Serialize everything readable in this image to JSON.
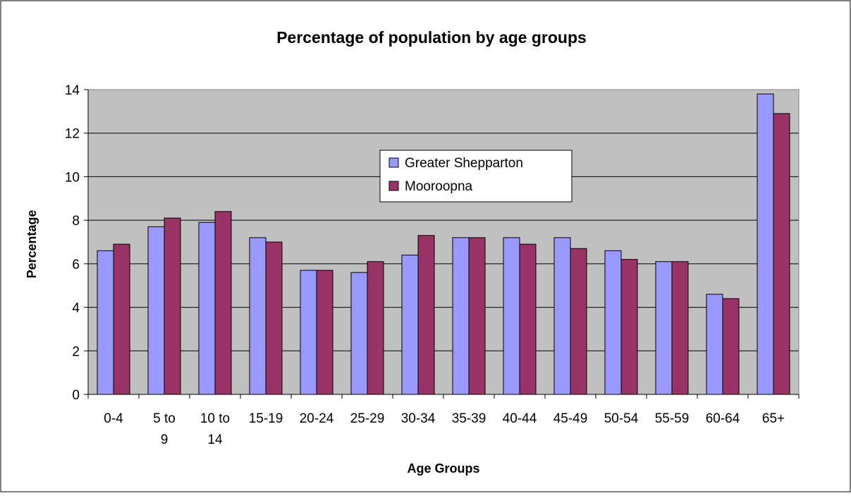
{
  "chart_data": {
    "type": "bar",
    "title": "Percentage of population by age groups",
    "xlabel": "Age Groups",
    "ylabel": "Percentage",
    "ylim": [
      0,
      14
    ],
    "yticks": [
      0,
      2,
      4,
      6,
      8,
      10,
      12,
      14
    ],
    "grid": true,
    "legend": "inside-center",
    "plot_background": "#c0c0c0",
    "categories": [
      [
        "0-4"
      ],
      [
        "5 to",
        "9"
      ],
      [
        "10 to",
        "14"
      ],
      [
        "15-19"
      ],
      [
        "20-24"
      ],
      [
        "25-29"
      ],
      [
        "30-34"
      ],
      [
        "35-39"
      ],
      [
        "40-44"
      ],
      [
        "45-49"
      ],
      [
        "50-54"
      ],
      [
        "55-59"
      ],
      [
        "60-64"
      ],
      [
        "65+"
      ]
    ],
    "series": [
      {
        "name": "Greater Shepparton",
        "color": "#9999ff",
        "values": [
          6.6,
          7.7,
          7.9,
          7.2,
          5.7,
          5.6,
          6.4,
          7.2,
          7.2,
          7.2,
          6.6,
          6.1,
          4.6,
          13.8
        ]
      },
      {
        "name": "Mooroopna",
        "color": "#993366",
        "values": [
          6.9,
          8.1,
          8.4,
          7.0,
          5.7,
          6.1,
          7.3,
          7.2,
          6.9,
          6.7,
          6.2,
          6.1,
          4.4,
          12.9
        ]
      }
    ]
  }
}
